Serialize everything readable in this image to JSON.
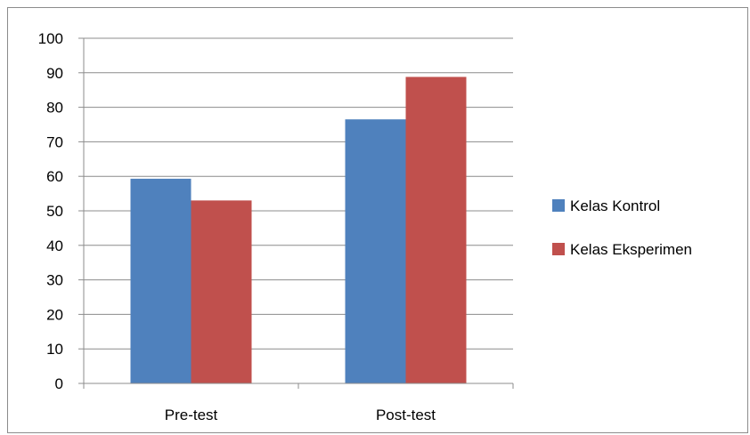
{
  "chart_data": {
    "type": "bar",
    "categories": [
      "Pre-test",
      "Post-test"
    ],
    "series": [
      {
        "name": "Kelas Kontrol",
        "color": "#4f81bd",
        "values": [
          59.3,
          76.5
        ]
      },
      {
        "name": "Kelas Eksperimen",
        "color": "#c0504d",
        "values": [
          53,
          88.8
        ]
      }
    ],
    "ylim": [
      0,
      100
    ],
    "yticks": [
      0,
      10,
      20,
      30,
      40,
      50,
      60,
      70,
      80,
      90,
      100
    ],
    "grid": true,
    "legend_position": "right",
    "title": "",
    "xlabel": "",
    "ylabel": ""
  }
}
